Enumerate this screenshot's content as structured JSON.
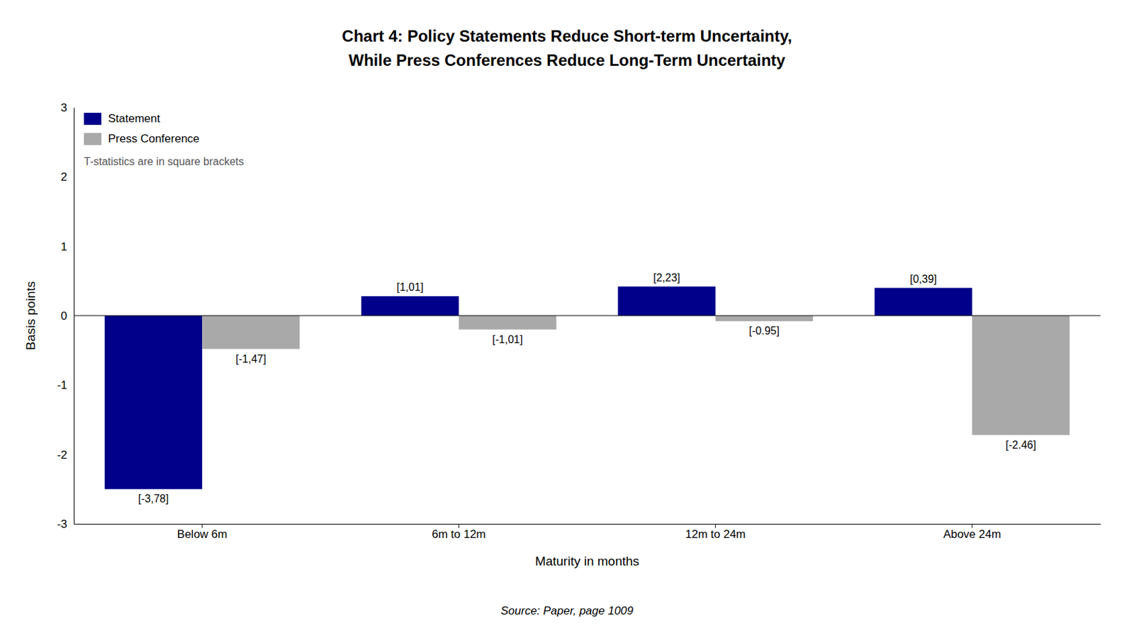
{
  "chart_data": {
    "type": "bar",
    "title": "Chart 4: Policy Statements Reduce Short-term Uncertainty,",
    "subtitle": "While Press Conferences Reduce Long-Term Uncertainty",
    "categories": [
      "Below 6m",
      "6m to 12m",
      "12m to 24m",
      "Above 24m"
    ],
    "series": [
      {
        "name": "Statement",
        "color": "#00008B",
        "values": [
          -2.5,
          0.28,
          0.42,
          0.4
        ],
        "t_stat_labels": [
          "[-3,78]",
          "[1,01]",
          "[2,23]",
          "[0,39]"
        ]
      },
      {
        "name": "Press Conference",
        "color": "#A9A9A9",
        "values": [
          -0.48,
          -0.2,
          -0.08,
          -1.72
        ],
        "t_stat_labels": [
          "[-1,47]",
          "[-1,01]",
          "[-0.95]",
          "[-2.46]"
        ]
      }
    ],
    "x_label": "Maturity in months",
    "y_label": "Basis points",
    "ylim": [
      -3,
      3
    ],
    "yticks": [
      -3,
      -2,
      -1,
      0,
      1,
      2,
      3
    ],
    "grid": false,
    "legend": "upper-left",
    "note": "T-statistics are in square brackets",
    "source": "Source: Paper, page 1009"
  }
}
